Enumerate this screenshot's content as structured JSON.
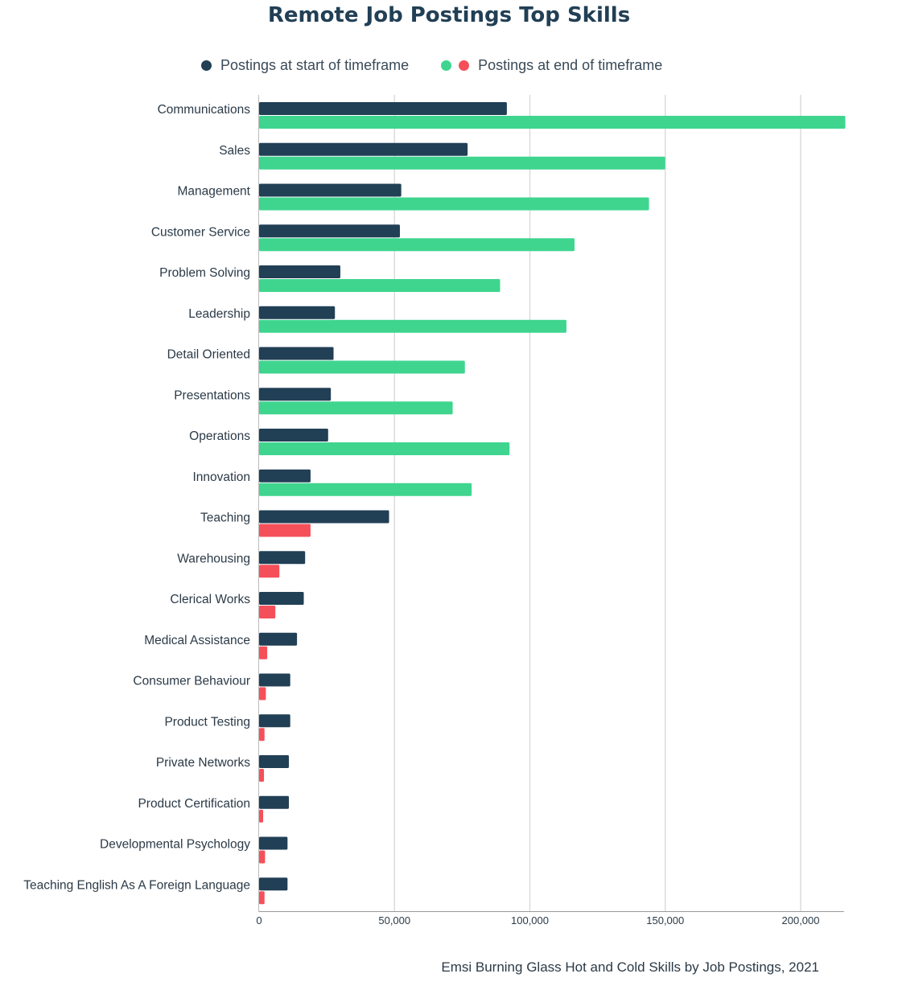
{
  "chart_data": {
    "type": "bar",
    "orientation": "horizontal",
    "title": "Remote Job Postings Top Skills",
    "source": "Emsi Burning Glass Hot and Cold Skills by Job Postings, 2021",
    "xlim": [
      0,
      216000
    ],
    "xticks": [
      0,
      50000,
      100000,
      150000,
      200000
    ],
    "xtick_labels": [
      "0",
      "50,000",
      "100,000",
      "150,000",
      "200,000"
    ],
    "grid": "vertical",
    "legend_position": "top",
    "legend": {
      "start_label": "Postings at start of timeframe",
      "end_label": "Postings at end of timeframe"
    },
    "colors": {
      "start": "#213f55",
      "end_growth": "#3fd58f",
      "end_decline": "#f5505a",
      "grid": "#dcdcdc",
      "axis": "#999999"
    },
    "categories": [
      "Communications",
      "Sales",
      "Management",
      "Customer Service",
      "Problem Solving",
      "Leadership",
      "Detail Oriented",
      "Presentations",
      "Operations",
      "Innovation",
      "Teaching",
      "Warehousing",
      "Clerical Works",
      "Medical Assistance",
      "Consumer Behaviour",
      "Product Testing",
      "Private Networks",
      "Product Certification",
      "Developmental Psychology",
      "Teaching English As A Foreign Language"
    ],
    "series": [
      {
        "name": "Postings at start of timeframe",
        "values": [
          91500,
          77000,
          52500,
          52000,
          30000,
          28000,
          27500,
          26500,
          25500,
          19000,
          48000,
          17000,
          16500,
          14000,
          11500,
          11500,
          11000,
          11000,
          10500,
          10500
        ]
      },
      {
        "name": "Postings at end of timeframe",
        "values": [
          216500,
          150000,
          144000,
          116500,
          89000,
          113500,
          76000,
          71500,
          92500,
          78500,
          19000,
          7500,
          6000,
          3000,
          2500,
          2000,
          1800,
          1500,
          2200,
          2000
        ]
      }
    ]
  }
}
